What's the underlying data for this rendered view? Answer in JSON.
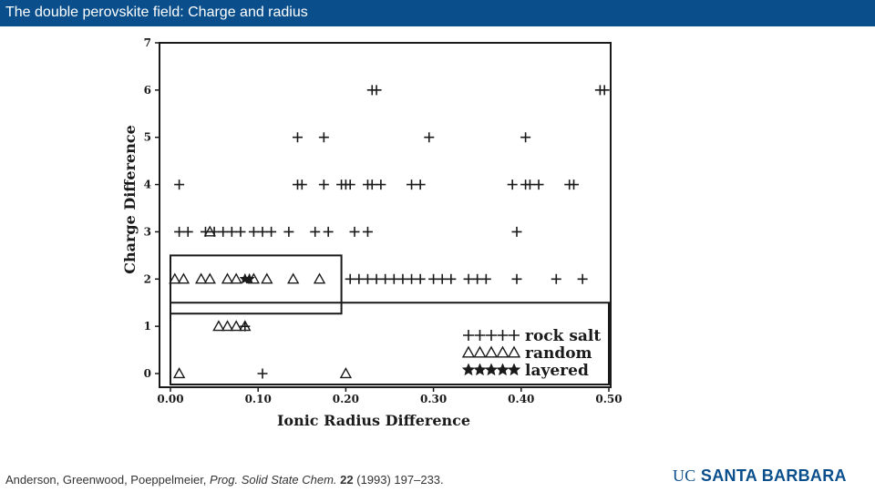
{
  "slide": {
    "title": "The double perovskite field: Charge and radius",
    "citation": {
      "authors": "Anderson, Greenwood, Poeppelmeier,",
      "journal": "Prog. Solid State Chem.",
      "volume": "22",
      "rest": "(1993) 197–233."
    },
    "logo": {
      "uc": "UC",
      "name": "SANTA BARBARA"
    }
  },
  "colors": {
    "title_bar": "#0a4f8c",
    "ink": "#1a1a1a",
    "logo": "#0a4f8c"
  },
  "chart_data": {
    "type": "scatter",
    "title": "",
    "xlabel": "Ionic Radius Difference",
    "ylabel": "Charge Difference",
    "xlim": [
      0.0,
      0.5
    ],
    "ylim": [
      0,
      7
    ],
    "x_ticks": [
      "0.00",
      "0.10",
      "0.20",
      "0.30",
      "0.40",
      "0.50"
    ],
    "y_ticks": [
      "0",
      "1",
      "2",
      "3",
      "4",
      "5",
      "6",
      "7"
    ],
    "grid": false,
    "legend_position": "bottom-right",
    "regions": [
      {
        "x": [
          0.0,
          0.195
        ],
        "y": [
          1.5,
          2.5
        ]
      },
      {
        "x": [
          0.0,
          0.5
        ],
        "y": [
          0,
          1.5
        ]
      }
    ],
    "series": [
      {
        "name": "rock salt",
        "marker": "plus",
        "points": [
          [
            0.23,
            6
          ],
          [
            0.235,
            6
          ],
          [
            0.49,
            6
          ],
          [
            0.495,
            6
          ],
          [
            0.145,
            5
          ],
          [
            0.175,
            5
          ],
          [
            0.295,
            5
          ],
          [
            0.405,
            5
          ],
          [
            0.01,
            4
          ],
          [
            0.145,
            4
          ],
          [
            0.15,
            4
          ],
          [
            0.175,
            4
          ],
          [
            0.195,
            4
          ],
          [
            0.2,
            4
          ],
          [
            0.205,
            4
          ],
          [
            0.225,
            4
          ],
          [
            0.23,
            4
          ],
          [
            0.24,
            4
          ],
          [
            0.275,
            4
          ],
          [
            0.285,
            4
          ],
          [
            0.39,
            4
          ],
          [
            0.405,
            4
          ],
          [
            0.41,
            4
          ],
          [
            0.42,
            4
          ],
          [
            0.455,
            4
          ],
          [
            0.46,
            4
          ],
          [
            0.01,
            3
          ],
          [
            0.02,
            3
          ],
          [
            0.04,
            3
          ],
          [
            0.05,
            3
          ],
          [
            0.06,
            3
          ],
          [
            0.07,
            3
          ],
          [
            0.08,
            3
          ],
          [
            0.095,
            3
          ],
          [
            0.105,
            3
          ],
          [
            0.115,
            3
          ],
          [
            0.135,
            3
          ],
          [
            0.165,
            3
          ],
          [
            0.18,
            3
          ],
          [
            0.21,
            3
          ],
          [
            0.225,
            3
          ],
          [
            0.395,
            3
          ],
          [
            0.205,
            2
          ],
          [
            0.215,
            2
          ],
          [
            0.225,
            2
          ],
          [
            0.235,
            2
          ],
          [
            0.245,
            2
          ],
          [
            0.255,
            2
          ],
          [
            0.265,
            2
          ],
          [
            0.275,
            2
          ],
          [
            0.285,
            2
          ],
          [
            0.3,
            2
          ],
          [
            0.31,
            2
          ],
          [
            0.32,
            2
          ],
          [
            0.34,
            2
          ],
          [
            0.35,
            2
          ],
          [
            0.36,
            2
          ],
          [
            0.395,
            2
          ],
          [
            0.44,
            2
          ],
          [
            0.47,
            2
          ],
          [
            0.085,
            1
          ],
          [
            0.105,
            0
          ]
        ]
      },
      {
        "name": "random",
        "marker": "triangle",
        "points": [
          [
            0.045,
            3
          ],
          [
            0.005,
            2
          ],
          [
            0.015,
            2
          ],
          [
            0.035,
            2
          ],
          [
            0.045,
            2
          ],
          [
            0.065,
            2
          ],
          [
            0.075,
            2
          ],
          [
            0.095,
            2
          ],
          [
            0.11,
            2
          ],
          [
            0.14,
            2
          ],
          [
            0.17,
            2
          ],
          [
            0.055,
            1
          ],
          [
            0.065,
            1
          ],
          [
            0.075,
            1
          ],
          [
            0.085,
            1
          ],
          [
            0.01,
            0
          ],
          [
            0.2,
            0
          ]
        ]
      },
      {
        "name": "layered",
        "marker": "star",
        "points": [
          [
            0.085,
            2
          ],
          [
            0.09,
            2
          ]
        ]
      }
    ]
  }
}
